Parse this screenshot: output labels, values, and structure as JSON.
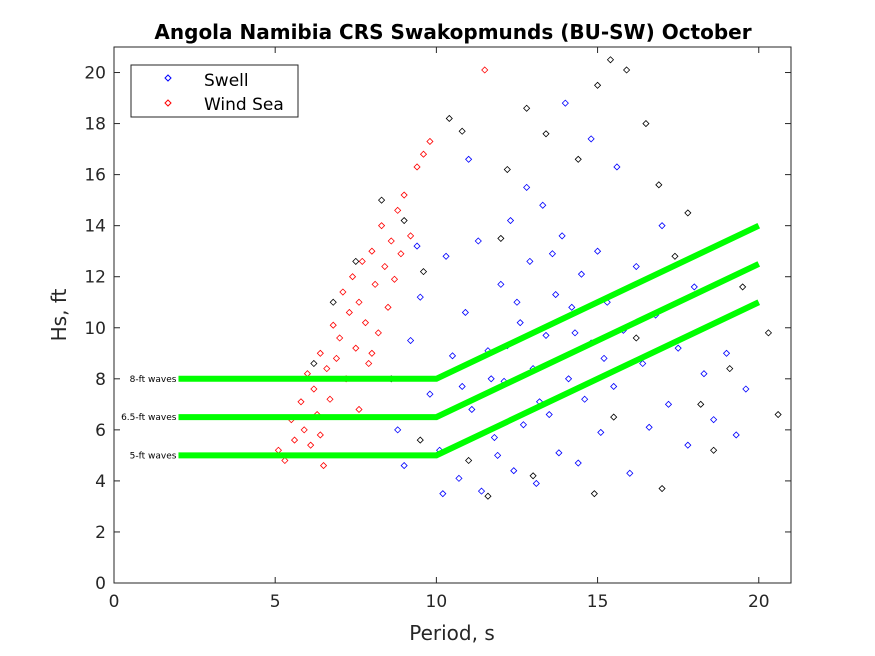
{
  "chart_data": {
    "type": "scatter",
    "title": "Angola Namibia CRS Swakopmunds (BU-SW) October",
    "xlabel": "Period, s",
    "ylabel": "Hs, ft",
    "xlim": [
      0,
      21
    ],
    "ylim": [
      0,
      21
    ],
    "xticks": [
      0,
      5,
      10,
      15,
      20
    ],
    "yticks": [
      0,
      2,
      4,
      6,
      8,
      10,
      12,
      14,
      16,
      18,
      20
    ],
    "grid": false,
    "legend": {
      "placement": "top-left",
      "entries": [
        "Swell",
        "Wind Sea"
      ]
    },
    "series": [
      {
        "name": "Swell",
        "color": "#0000ff",
        "points": [
          [
            9.2,
            9.5
          ],
          [
            9.5,
            11.2
          ],
          [
            9.8,
            7.4
          ],
          [
            10.1,
            5.2
          ],
          [
            10.3,
            12.8
          ],
          [
            10.5,
            8.9
          ],
          [
            10.7,
            4.1
          ],
          [
            10.9,
            10.6
          ],
          [
            11.1,
            6.8
          ],
          [
            11.3,
            13.4
          ],
          [
            11.4,
            3.6
          ],
          [
            11.6,
            9.1
          ],
          [
            11.8,
            5.7
          ],
          [
            12.0,
            11.7
          ],
          [
            12.1,
            7.9
          ],
          [
            12.3,
            14.2
          ],
          [
            12.4,
            4.4
          ],
          [
            12.6,
            10.2
          ],
          [
            12.7,
            6.2
          ],
          [
            12.9,
            12.6
          ],
          [
            13.0,
            8.4
          ],
          [
            13.1,
            3.9
          ],
          [
            13.3,
            14.8
          ],
          [
            13.4,
            9.7
          ],
          [
            13.5,
            6.6
          ],
          [
            13.7,
            11.3
          ],
          [
            13.8,
            5.1
          ],
          [
            13.9,
            13.6
          ],
          [
            14.1,
            8.0
          ],
          [
            14.2,
            10.8
          ],
          [
            14.4,
            4.7
          ],
          [
            14.5,
            12.1
          ],
          [
            14.6,
            7.2
          ],
          [
            14.8,
            9.4
          ],
          [
            15.0,
            13.0
          ],
          [
            15.1,
            5.9
          ],
          [
            15.3,
            11.0
          ],
          [
            15.5,
            7.7
          ],
          [
            15.6,
            16.3
          ],
          [
            15.8,
            9.9
          ],
          [
            16.0,
            4.3
          ],
          [
            16.2,
            12.4
          ],
          [
            16.4,
            8.6
          ],
          [
            16.6,
            6.1
          ],
          [
            16.8,
            10.5
          ],
          [
            17.0,
            14.0
          ],
          [
            17.2,
            7.0
          ],
          [
            17.5,
            9.2
          ],
          [
            17.8,
            5.4
          ],
          [
            18.0,
            11.6
          ],
          [
            18.3,
            8.2
          ],
          [
            18.6,
            6.4
          ],
          [
            19.0,
            9.0
          ],
          [
            19.3,
            5.8
          ],
          [
            19.6,
            7.6
          ],
          [
            14.0,
            18.8
          ],
          [
            14.8,
            17.4
          ],
          [
            12.8,
            15.5
          ],
          [
            11.0,
            16.6
          ],
          [
            10.2,
            3.5
          ],
          [
            9.0,
            4.6
          ],
          [
            8.8,
            6.0
          ],
          [
            9.4,
            13.2
          ],
          [
            12.2,
            9.3
          ],
          [
            13.2,
            7.1
          ],
          [
            11.7,
            8.0
          ],
          [
            12.5,
            11.0
          ],
          [
            14.3,
            9.8
          ],
          [
            10.8,
            7.7
          ],
          [
            11.9,
            5.0
          ],
          [
            13.6,
            12.9
          ],
          [
            15.2,
            8.8
          ]
        ]
      },
      {
        "name": "Wind Sea",
        "color": "#ff0000",
        "points": [
          [
            5.1,
            5.2
          ],
          [
            5.3,
            4.8
          ],
          [
            5.5,
            6.4
          ],
          [
            5.6,
            5.6
          ],
          [
            5.8,
            7.1
          ],
          [
            5.9,
            6.0
          ],
          [
            6.0,
            8.2
          ],
          [
            6.1,
            5.4
          ],
          [
            6.2,
            7.6
          ],
          [
            6.3,
            6.6
          ],
          [
            6.4,
            9.0
          ],
          [
            6.5,
            4.6
          ],
          [
            6.6,
            8.4
          ],
          [
            6.7,
            7.2
          ],
          [
            6.8,
            10.1
          ],
          [
            6.9,
            8.8
          ],
          [
            7.0,
            9.6
          ],
          [
            7.1,
            11.4
          ],
          [
            7.2,
            8.0
          ],
          [
            7.3,
            10.6
          ],
          [
            7.4,
            12.0
          ],
          [
            7.5,
            9.2
          ],
          [
            7.6,
            11.0
          ],
          [
            7.7,
            12.6
          ],
          [
            7.8,
            10.2
          ],
          [
            7.9,
            8.6
          ],
          [
            8.0,
            13.0
          ],
          [
            8.1,
            11.7
          ],
          [
            8.2,
            9.8
          ],
          [
            8.3,
            14.0
          ],
          [
            8.4,
            12.4
          ],
          [
            8.5,
            10.8
          ],
          [
            8.6,
            13.4
          ],
          [
            8.7,
            11.9
          ],
          [
            8.8,
            14.6
          ],
          [
            8.9,
            12.9
          ],
          [
            9.0,
            15.2
          ],
          [
            9.2,
            13.6
          ],
          [
            9.4,
            16.3
          ],
          [
            9.6,
            16.8
          ],
          [
            9.8,
            17.3
          ],
          [
            11.5,
            20.1
          ],
          [
            7.6,
            6.8
          ],
          [
            6.4,
            5.8
          ],
          [
            8.0,
            9.0
          ]
        ]
      },
      {
        "name": "",
        "color": "#000000",
        "points": [
          [
            6.2,
            8.6
          ],
          [
            6.8,
            11.0
          ],
          [
            7.5,
            12.6
          ],
          [
            8.3,
            15.0
          ],
          [
            9.0,
            14.2
          ],
          [
            9.6,
            12.2
          ],
          [
            10.4,
            18.2
          ],
          [
            10.8,
            17.7
          ],
          [
            11.0,
            4.8
          ],
          [
            11.6,
            3.4
          ],
          [
            12.2,
            16.2
          ],
          [
            12.8,
            18.6
          ],
          [
            13.4,
            17.6
          ],
          [
            14.4,
            16.6
          ],
          [
            15.0,
            19.5
          ],
          [
            15.4,
            20.5
          ],
          [
            15.9,
            20.1
          ],
          [
            16.5,
            18.0
          ],
          [
            16.9,
            15.6
          ],
          [
            17.4,
            12.8
          ],
          [
            17.8,
            14.5
          ],
          [
            18.2,
            7.0
          ],
          [
            18.6,
            5.2
          ],
          [
            19.1,
            8.4
          ],
          [
            19.5,
            11.6
          ],
          [
            20.3,
            9.8
          ],
          [
            20.6,
            6.6
          ],
          [
            17.0,
            3.7
          ],
          [
            14.9,
            3.5
          ],
          [
            13.0,
            4.2
          ],
          [
            9.5,
            5.6
          ],
          [
            8.6,
            8.0
          ],
          [
            16.2,
            9.6
          ],
          [
            15.5,
            6.5
          ],
          [
            12.0,
            13.5
          ]
        ]
      }
    ],
    "threshold_lines": [
      {
        "label": "8-ft waves",
        "color": "#00ff00",
        "points": [
          [
            2,
            8
          ],
          [
            10,
            8
          ],
          [
            20,
            14
          ]
        ]
      },
      {
        "label": "6.5-ft waves",
        "color": "#00ff00",
        "points": [
          [
            2,
            6.5
          ],
          [
            10,
            6.5
          ],
          [
            20,
            12.5
          ]
        ]
      },
      {
        "label": "5-ft waves",
        "color": "#00ff00",
        "points": [
          [
            2,
            5
          ],
          [
            10,
            5
          ],
          [
            20,
            11
          ]
        ]
      }
    ]
  }
}
